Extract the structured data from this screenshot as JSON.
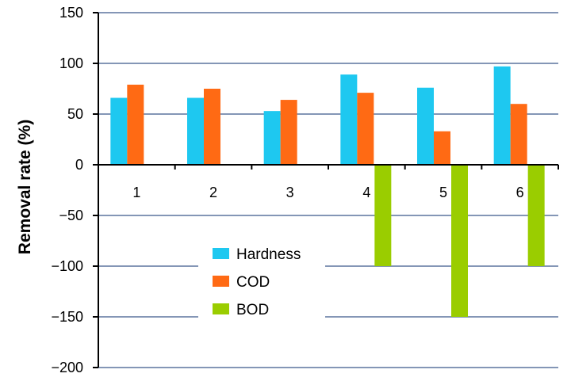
{
  "chart_data": {
    "type": "bar",
    "title": "",
    "xlabel": "",
    "ylabel": "Removal rate (%)",
    "ylim": [
      -200,
      150
    ],
    "yticks": [
      150,
      100,
      50,
      0,
      -50,
      -100,
      -150,
      -200
    ],
    "grid": true,
    "legend_position": "center-left",
    "categories": [
      "1",
      "2",
      "3",
      "4",
      "5",
      "6"
    ],
    "series": [
      {
        "name": "Hardness",
        "color": "#1EC8F0",
        "values": [
          66,
          66,
          53,
          89,
          76,
          97
        ]
      },
      {
        "name": "COD",
        "color": "#FF6A14",
        "values": [
          79,
          75,
          64,
          71,
          33,
          60
        ]
      },
      {
        "name": "BOD",
        "color": "#9ACD00",
        "values": [
          null,
          null,
          null,
          -100,
          -150,
          -100
        ]
      }
    ]
  }
}
